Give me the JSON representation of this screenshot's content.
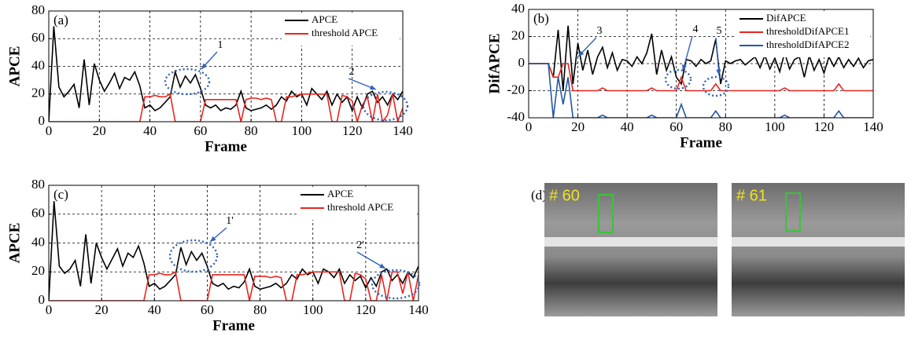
{
  "chart_data": [
    {
      "type": "line",
      "panel_label": "(a)",
      "xlabel": "Frame",
      "ylabel": "APCE",
      "xlim": [
        0,
        140
      ],
      "xticks": [
        0,
        20,
        40,
        60,
        80,
        100,
        120,
        140
      ],
      "ylim": [
        0,
        80
      ],
      "yticks": [
        0,
        20,
        40,
        60,
        80
      ],
      "grid": true,
      "legend": "upper right",
      "annotations": [
        "1",
        "2"
      ],
      "x": [
        0,
        2,
        4,
        6,
        8,
        10,
        12,
        14,
        16,
        18,
        20,
        22,
        24,
        26,
        28,
        30,
        32,
        34,
        36,
        38,
        40,
        42,
        44,
        46,
        48,
        50,
        52,
        54,
        56,
        58,
        60,
        62,
        64,
        66,
        68,
        70,
        72,
        74,
        76,
        78,
        80,
        82,
        84,
        86,
        88,
        90,
        92,
        94,
        96,
        98,
        100,
        102,
        104,
        106,
        108,
        110,
        112,
        114,
        116,
        118,
        120,
        122,
        124,
        126,
        128,
        130,
        132,
        134,
        136,
        138,
        140
      ],
      "series": [
        {
          "name": "APCE",
          "color": "#000000",
          "values": [
            0,
            69,
            25,
            18,
            22,
            27,
            10,
            45,
            12,
            42,
            30,
            22,
            28,
            35,
            24,
            32,
            30,
            36,
            26,
            10,
            12,
            8,
            10,
            14,
            18,
            36,
            25,
            33,
            28,
            34,
            24,
            12,
            10,
            12,
            8,
            10,
            9,
            12,
            22,
            10,
            8,
            9,
            10,
            12,
            9,
            12,
            18,
            15,
            22,
            18,
            20,
            12,
            24,
            20,
            16,
            22,
            12,
            20,
            14,
            18,
            8,
            18,
            10,
            20,
            22,
            14,
            18,
            12,
            20,
            16,
            22
          ]
        },
        {
          "name": "threshold APCE",
          "color": "#e8251f",
          "values": [
            0,
            0,
            0,
            0,
            0,
            0,
            0,
            0,
            0,
            0,
            0,
            0,
            0,
            0,
            0,
            0,
            0,
            0,
            0,
            18,
            18,
            19,
            18,
            18,
            20,
            0,
            0,
            0,
            0,
            0,
            0,
            16,
            16,
            16,
            16,
            16,
            16,
            16,
            0,
            16,
            17,
            17,
            16,
            17,
            16,
            0,
            0,
            18,
            18,
            19,
            20,
            20,
            20,
            20,
            20,
            20,
            0,
            0,
            19,
            18,
            15,
            0,
            12,
            18,
            0,
            20,
            0,
            5,
            20,
            0,
            10
          ]
        }
      ]
    },
    {
      "type": "line",
      "panel_label": "(b)",
      "xlabel": "Frame",
      "ylabel": "DifAPCE",
      "xlim": [
        0,
        140
      ],
      "xticks": [
        0,
        20,
        40,
        60,
        80,
        100,
        120,
        140
      ],
      "ylim": [
        -40,
        40
      ],
      "yticks": [
        -40,
        -20,
        0,
        20,
        40
      ],
      "grid": true,
      "legend": "upper right",
      "annotations": [
        "3",
        "4",
        "5"
      ],
      "x": [
        0,
        2,
        4,
        6,
        8,
        10,
        12,
        14,
        16,
        18,
        20,
        22,
        24,
        26,
        28,
        30,
        32,
        34,
        36,
        38,
        40,
        42,
        44,
        46,
        48,
        50,
        52,
        54,
        56,
        58,
        60,
        62,
        64,
        66,
        68,
        70,
        72,
        74,
        76,
        78,
        80,
        82,
        84,
        86,
        88,
        90,
        92,
        94,
        96,
        98,
        100,
        102,
        104,
        106,
        108,
        110,
        112,
        114,
        116,
        118,
        120,
        122,
        124,
        126,
        128,
        130,
        132,
        134,
        136,
        138,
        140
      ],
      "series": [
        {
          "name": "DifAPCE",
          "color": "#000000",
          "values": [
            0,
            0,
            0,
            0,
            0,
            -10,
            25,
            -20,
            28,
            -15,
            15,
            -5,
            10,
            -8,
            5,
            12,
            -3,
            8,
            -5,
            3,
            2,
            -2,
            5,
            0,
            8,
            22,
            -8,
            10,
            -5,
            5,
            -10,
            -15,
            3,
            2,
            -2,
            3,
            0,
            2,
            18,
            -15,
            2,
            0,
            2,
            3,
            -1,
            2,
            5,
            -3,
            6,
            -4,
            4,
            -6,
            8,
            -4,
            3,
            5,
            -10,
            6,
            -5,
            3,
            -7,
            5,
            -2,
            5,
            -3,
            3,
            -2,
            4,
            -3,
            2,
            3
          ]
        },
        {
          "name": "thresholdDifAPCE1",
          "color": "#e8251f",
          "values": [
            0,
            0,
            0,
            0,
            0,
            -10,
            -10,
            0,
            0,
            -20,
            -20,
            -20,
            -20,
            -20,
            -20,
            -18,
            -20,
            -20,
            -20,
            -20,
            -20,
            -20,
            -20,
            -20,
            -20,
            -18,
            -20,
            -20,
            -20,
            -20,
            -20,
            -10,
            -20,
            -20,
            -20,
            -20,
            -20,
            -20,
            -15,
            -20,
            -20,
            -20,
            -20,
            -20,
            -20,
            -20,
            -20,
            -20,
            -20,
            -20,
            -20,
            -20,
            -18,
            -20,
            -20,
            -20,
            -20,
            -20,
            -20,
            -20,
            -20,
            -20,
            -20,
            -15,
            -20,
            -20,
            -20,
            -20,
            -20,
            -20,
            -20
          ]
        },
        {
          "name": "thresholdDifAPCE2",
          "color": "#2456a4",
          "values": [
            0,
            0,
            0,
            0,
            0,
            -40,
            -10,
            -30,
            -10,
            -40,
            -40,
            -40,
            -40,
            -40,
            -40,
            -38,
            -40,
            -40,
            -40,
            -40,
            -40,
            -40,
            -40,
            -40,
            -40,
            -38,
            -40,
            -40,
            -40,
            -40,
            -40,
            -30,
            -40,
            -40,
            -40,
            -40,
            -40,
            -40,
            -35,
            -40,
            -40,
            -40,
            -40,
            -40,
            -40,
            -40,
            -40,
            -40,
            -40,
            -40,
            -40,
            -40,
            -38,
            -40,
            -40,
            -40,
            -40,
            -40,
            -40,
            -40,
            -40,
            -40,
            -40,
            -35,
            -40,
            -40,
            -40,
            -40,
            -40,
            -40,
            -40
          ]
        }
      ]
    },
    {
      "type": "line",
      "panel_label": "(c)",
      "xlabel": "Frame",
      "ylabel": "APCE",
      "xlim": [
        0,
        140
      ],
      "xticks": [
        0,
        20,
        40,
        60,
        80,
        100,
        120,
        140
      ],
      "ylim": [
        0,
        80
      ],
      "yticks": [
        0,
        20,
        40,
        60,
        80
      ],
      "grid": true,
      "legend": "upper right",
      "annotations": [
        "1'",
        "2'"
      ],
      "x": [
        0,
        2,
        4,
        6,
        8,
        10,
        12,
        14,
        16,
        18,
        20,
        22,
        24,
        26,
        28,
        30,
        32,
        34,
        36,
        38,
        40,
        42,
        44,
        46,
        48,
        50,
        52,
        54,
        56,
        58,
        60,
        62,
        64,
        66,
        68,
        70,
        72,
        74,
        76,
        78,
        80,
        82,
        84,
        86,
        88,
        90,
        92,
        94,
        96,
        98,
        100,
        102,
        104,
        106,
        108,
        110,
        112,
        114,
        116,
        118,
        120,
        122,
        124,
        126,
        128,
        130,
        132,
        134,
        136,
        138,
        140
      ],
      "series": [
        {
          "name": "APCE",
          "color": "#000000",
          "values": [
            0,
            69,
            24,
            19,
            22,
            28,
            10,
            46,
            12,
            40,
            30,
            22,
            29,
            36,
            24,
            33,
            30,
            38,
            26,
            10,
            12,
            8,
            10,
            14,
            18,
            37,
            25,
            34,
            28,
            33,
            24,
            12,
            10,
            12,
            8,
            10,
            9,
            13,
            22,
            10,
            8,
            9,
            10,
            12,
            9,
            12,
            18,
            15,
            22,
            18,
            20,
            12,
            22,
            20,
            16,
            22,
            12,
            18,
            14,
            17,
            9,
            16,
            10,
            20,
            22,
            14,
            18,
            12,
            20,
            16,
            24
          ]
        },
        {
          "name": "threshold APCE",
          "color": "#e8251f",
          "values": [
            0,
            0,
            0,
            0,
            0,
            0,
            0,
            0,
            0,
            0,
            0,
            0,
            0,
            0,
            0,
            0,
            0,
            0,
            0,
            18,
            18,
            19,
            18,
            18,
            20,
            0,
            0,
            0,
            0,
            0,
            0,
            18,
            18,
            18,
            18,
            18,
            18,
            18,
            0,
            17,
            17,
            17,
            16,
            17,
            16,
            0,
            0,
            18,
            18,
            19,
            20,
            20,
            20,
            20,
            20,
            20,
            0,
            0,
            19,
            18,
            15,
            0,
            0,
            18,
            0,
            20,
            20,
            5,
            20,
            0,
            18
          ]
        }
      ]
    }
  ],
  "panel_d": {
    "label": "(d)",
    "frames": [
      "# 60",
      "# 61"
    ]
  }
}
